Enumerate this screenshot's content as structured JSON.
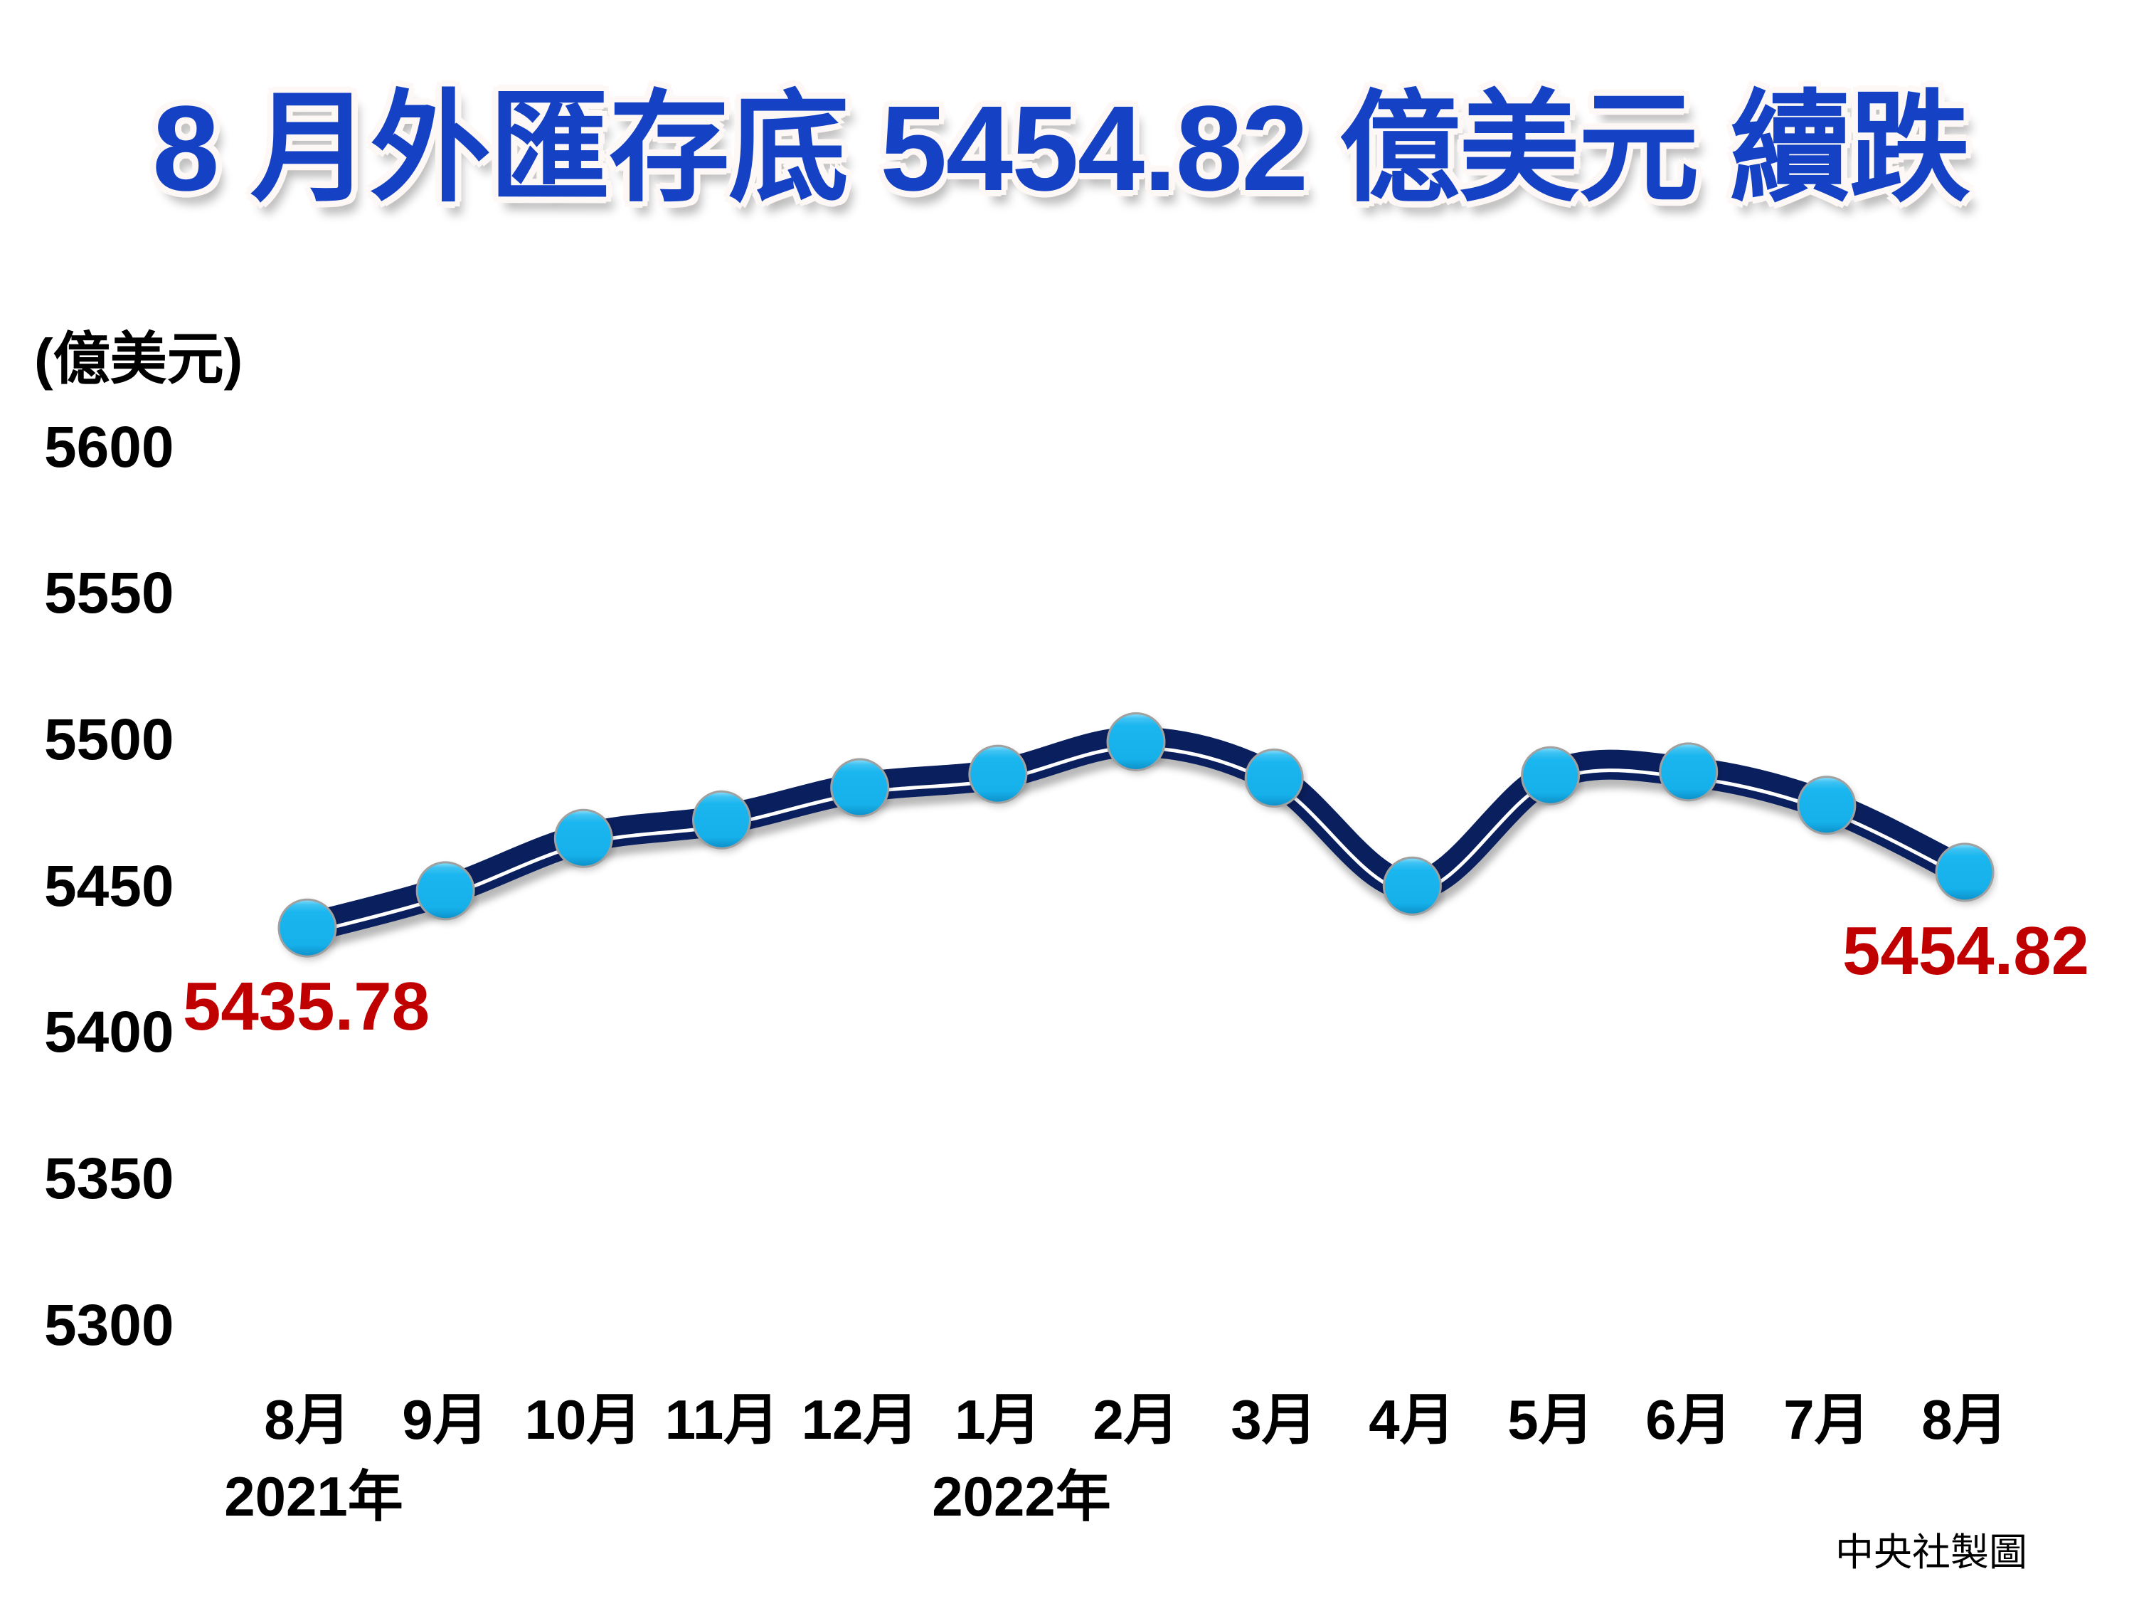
{
  "header": {
    "title": "8 月外匯存底 5454.82 億美元 續跌"
  },
  "axes": {
    "y_unit_label": "(億美元)"
  },
  "credit": "中央社製圖",
  "colors": {
    "title": "#1541c4",
    "line": "#0a1f5e",
    "line_highlight": "#ffffff",
    "marker": "#17b4ee",
    "marker_border": "#a0a0a0",
    "annotation": "#c00000",
    "axis_text": "#000000"
  },
  "chart_data": {
    "type": "line",
    "title": "8 月外匯存底 5454.82 億美元 續跌",
    "xlabel": "",
    "ylabel": "(億美元)",
    "categories": [
      "8月",
      "9月",
      "10月",
      "11月",
      "12月",
      "1月",
      "2月",
      "3月",
      "4月",
      "5月",
      "6月",
      "7月",
      "8月"
    ],
    "year_labels": [
      {
        "label": "2021年",
        "category_index": 0
      },
      {
        "label": "2022年",
        "category_index": 5
      }
    ],
    "series": [
      {
        "name": "外匯存底",
        "values": [
          5435.78,
          5448.5,
          5466.4,
          5472.7,
          5483.7,
          5488.3,
          5499.4,
          5487.0,
          5450.1,
          5487.8,
          5489.1,
          5477.7,
          5454.82
        ]
      }
    ],
    "ylim": [
      5300,
      5600
    ],
    "yticks": [
      5600,
      5550,
      5500,
      5450,
      5400,
      5350,
      5300
    ],
    "annotations": [
      {
        "category_index": 0,
        "text": "5435.78"
      },
      {
        "category_index": 12,
        "text": "5454.82"
      }
    ],
    "grid": false,
    "legend": null,
    "smoothed": true,
    "markers": "circle"
  }
}
